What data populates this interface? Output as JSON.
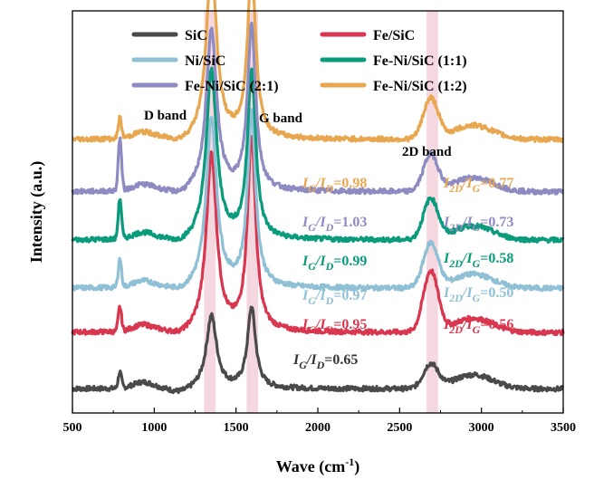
{
  "chart_data": {
    "type": "line",
    "xlabel_main": "Wave (cm",
    "xlabel_sup": "-1",
    "xlabel_end": ")",
    "ylabel": "Intensity (a.u.)",
    "xlim": [
      500,
      3500
    ],
    "xticks": [
      "500",
      "1000",
      "1500",
      "2000",
      "2500",
      "3000",
      "3500"
    ],
    "band_labels": [
      "D band",
      "G band",
      "2D band"
    ],
    "band_regions": [
      {
        "name": "D band",
        "range": [
          1305,
          1375
        ]
      },
      {
        "name": "G band",
        "range": [
          1565,
          1635
        ]
      },
      {
        "name": "2D band",
        "range": [
          2665,
          2735
        ]
      }
    ],
    "series": [
      {
        "name": "SiC",
        "color": "#4a4a4a",
        "baseline": 0.06,
        "d": 0.18,
        "g": 0.2,
        "sd": 0.06,
        "p790": 0.04,
        "ratio": {
          "ig_id": "=0.65",
          "i2d_ig": ""
        }
      },
      {
        "name": "Fe/SiC",
        "color": "#d9364f",
        "baseline": 0.2,
        "d": 0.44,
        "g": 0.48,
        "sd": 0.15,
        "p790": 0.06,
        "ratio": {
          "ig_id": "=0.95",
          "i2d_ig": "=0.56"
        }
      },
      {
        "name": "Ni/SiC",
        "color": "#8fc0d6",
        "baseline": 0.31,
        "d": 0.42,
        "g": 0.43,
        "sd": 0.11,
        "p790": 0.07,
        "ratio": {
          "ig_id": "=0.97",
          "i2d_ig": "=0.50"
        }
      },
      {
        "name": "Fe-Ni/SiC (1:1)",
        "color": "#0a9a7c",
        "baseline": 0.43,
        "d": 0.42,
        "g": 0.42,
        "sd": 0.1,
        "p790": 0.1,
        "ratio": {
          "ig_id": "=0.99",
          "i2d_ig": "=0.58"
        }
      },
      {
        "name": "Fe-Ni/SiC (2:1)",
        "color": "#8e8bc2",
        "baseline": 0.55,
        "d": 0.4,
        "g": 0.41,
        "sd": 0.09,
        "p790": 0.13,
        "ratio": {
          "ig_id": "=1.03",
          "i2d_ig": "=0.73"
        }
      },
      {
        "name": "Fe-Ni/SiC (1:2)",
        "color": "#e8a74f",
        "baseline": 0.68,
        "d": 0.43,
        "g": 0.42,
        "sd": 0.1,
        "p790": 0.05,
        "ratio": {
          "ig_id": "=0.98",
          "i2d_ig": "=0.77"
        }
      }
    ],
    "ratio_symbols": {
      "I": "I",
      "G": "G",
      "D": "D",
      "twoD": "2D",
      "slash": "/"
    }
  }
}
